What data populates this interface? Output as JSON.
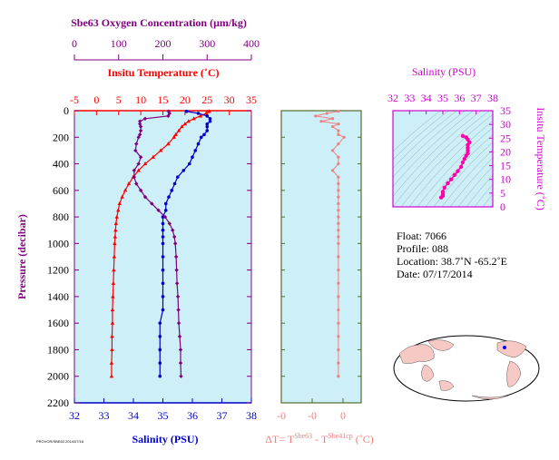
{
  "chart_data": [
    {
      "type": "line",
      "panel": "main",
      "title": "",
      "ylabel": "Pressure (decibar)",
      "ylim": [
        2200,
        0
      ],
      "yticks": [
        "0",
        "200",
        "400",
        "600",
        "800",
        "1000",
        "1200",
        "1400",
        "1600",
        "1800",
        "2000",
        "2200"
      ],
      "axes": {
        "oxygen": {
          "label": "Sbe63 Oxygen Concentration (μm/kg)",
          "range": [
            0,
            400
          ],
          "ticks": [
            "0",
            "100",
            "200",
            "300",
            "400"
          ],
          "color": "#800080"
        },
        "temperature": {
          "label": "Insitu Temperature (˚C)",
          "range": [
            -5,
            35
          ],
          "ticks": [
            "-5",
            "0",
            "5",
            "10",
            "15",
            "20",
            "25",
            "30",
            "35"
          ],
          "color": "#ff0000"
        },
        "salinity": {
          "label": "Salinity (PSU)",
          "range": [
            32,
            38
          ],
          "ticks": [
            "32",
            "33",
            "34",
            "35",
            "36",
            "37",
            "38"
          ],
          "color": "#0000cc"
        }
      },
      "series": [
        {
          "axis": "temperature",
          "color": "#ff0000",
          "marker": "triangle",
          "p": [
            5,
            20,
            40,
            60,
            80,
            100,
            120,
            150,
            180,
            200,
            250,
            300,
            350,
            400,
            450,
            500,
            550,
            600,
            650,
            700,
            750,
            800,
            850,
            900,
            950,
            1000,
            1100,
            1200,
            1300,
            1400,
            1500,
            1600,
            1700,
            1800,
            1900,
            2000
          ],
          "v": [
            25.5,
            24.8,
            23.5,
            22.0,
            20.8,
            20.0,
            19.3,
            18.6,
            17.9,
            17.5,
            16.2,
            14.5,
            12.8,
            11.0,
            9.5,
            8.3,
            7.3,
            6.5,
            5.8,
            5.2,
            4.9,
            4.6,
            4.4,
            4.3,
            4.2,
            4.1,
            4.0,
            3.9,
            3.8,
            3.7,
            3.6,
            3.6,
            3.5,
            3.5,
            3.4,
            3.4
          ]
        },
        {
          "axis": "salinity",
          "color": "#0000cc",
          "marker": "circle",
          "p": [
            5,
            20,
            40,
            60,
            80,
            100,
            120,
            150,
            180,
            200,
            250,
            300,
            350,
            400,
            450,
            500,
            550,
            600,
            650,
            700,
            750,
            800,
            850,
            900,
            950,
            1000,
            1100,
            1200,
            1300,
            1400,
            1500,
            1600,
            1700,
            1800,
            1900,
            2000
          ],
          "v": [
            35.8,
            36.2,
            36.5,
            36.6,
            36.6,
            36.5,
            36.5,
            36.5,
            36.4,
            36.3,
            36.2,
            36.1,
            36.0,
            35.9,
            35.7,
            35.5,
            35.4,
            35.3,
            35.2,
            35.1,
            35.1,
            35.0,
            35.0,
            35.0,
            35.0,
            35.0,
            35.0,
            35.0,
            35.0,
            35.0,
            35.0,
            34.9,
            34.9,
            34.9,
            34.9,
            34.9
          ]
        },
        {
          "axis": "oxygen",
          "color": "#800080",
          "marker": "diamond",
          "p": [
            5,
            20,
            40,
            60,
            80,
            100,
            120,
            150,
            180,
            200,
            250,
            300,
            350,
            400,
            450,
            500,
            550,
            600,
            650,
            700,
            750,
            800,
            850,
            900,
            950,
            1000,
            1100,
            1200,
            1300,
            1400,
            1500,
            1600,
            1700,
            1800,
            1900,
            2000
          ],
          "v": [
            213,
            215,
            212,
            160,
            148,
            148,
            150,
            150,
            148,
            145,
            140,
            138,
            150,
            145,
            135,
            135,
            140,
            150,
            160,
            175,
            190,
            205,
            215,
            222,
            226,
            228,
            230,
            231,
            232,
            234,
            235,
            236,
            238,
            240,
            240,
            241
          ]
        }
      ]
    },
    {
      "type": "line",
      "panel": "delta",
      "xlabel": "ΔT= T^Sbe63 - T^Sbe41cp (˚C)",
      "xticks": [
        "-0",
        "-0",
        "-0",
        "0"
      ],
      "color": "#f08080",
      "p": [
        5,
        20,
        40,
        60,
        80,
        100,
        120,
        150,
        180,
        200,
        250,
        300,
        350,
        400,
        450,
        500,
        550,
        600,
        650,
        700,
        750,
        800,
        850,
        900,
        950,
        1000,
        1100,
        1200,
        1300,
        1400,
        1500,
        1600,
        1700,
        1800,
        1900,
        2000
      ],
      "v": [
        0.0,
        -0.01,
        -0.02,
        -0.005,
        -0.015,
        0.0,
        -0.005,
        0.0,
        0.0,
        0.005,
        0.0,
        -0.005,
        0.0,
        0.0,
        -0.005,
        0.0,
        0.0,
        0.0,
        0.0,
        0.0,
        0.0,
        0.0,
        0.0,
        0.0,
        0.0,
        0.0,
        0.0,
        0.0,
        0.0,
        0.0,
        0.0,
        0.0,
        0.0,
        0.0,
        0.0,
        0.0
      ]
    },
    {
      "type": "scatter",
      "panel": "ts",
      "title": "Salinity (PSU)",
      "ylabel": "Insitu Temperature (˚C)",
      "xlim": [
        32,
        38
      ],
      "ylim": [
        0,
        35
      ],
      "xticks": [
        "32",
        "33",
        "34",
        "35",
        "36",
        "37",
        "38"
      ],
      "yticks": [
        "0",
        "5",
        "10",
        "15",
        "20",
        "25",
        "30",
        "35"
      ],
      "color": "#ff00aa",
      "x": [
        34.9,
        35.0,
        35.0,
        35.0,
        35.1,
        35.3,
        35.5,
        35.7,
        35.9,
        36.1,
        36.2,
        36.3,
        36.4,
        36.5,
        36.5,
        36.5,
        36.5,
        36.6,
        36.5,
        36.4,
        36.2
      ],
      "y": [
        3.4,
        4.0,
        4.6,
        5.5,
        7.0,
        8.6,
        10.0,
        11.6,
        13.0,
        14.6,
        16.2,
        17.5,
        18.6,
        19.5,
        20.5,
        21.5,
        22.5,
        23.5,
        24.5,
        25.3,
        25.8
      ]
    }
  ],
  "info": {
    "float": "Float:  7066",
    "profile": "Profile:  088",
    "location": "Location:  38.7˚N  -65.2˚E",
    "date": "Date:  07/17/2014"
  },
  "footer_note": "PROVOR/SBE63 2014/07/18",
  "colors": {
    "panel_bg": "#cdeff7",
    "axis_purple": "#800080",
    "axis_red": "#ff0000",
    "axis_blue": "#0000cc",
    "ts_axis": "#d000d0"
  }
}
